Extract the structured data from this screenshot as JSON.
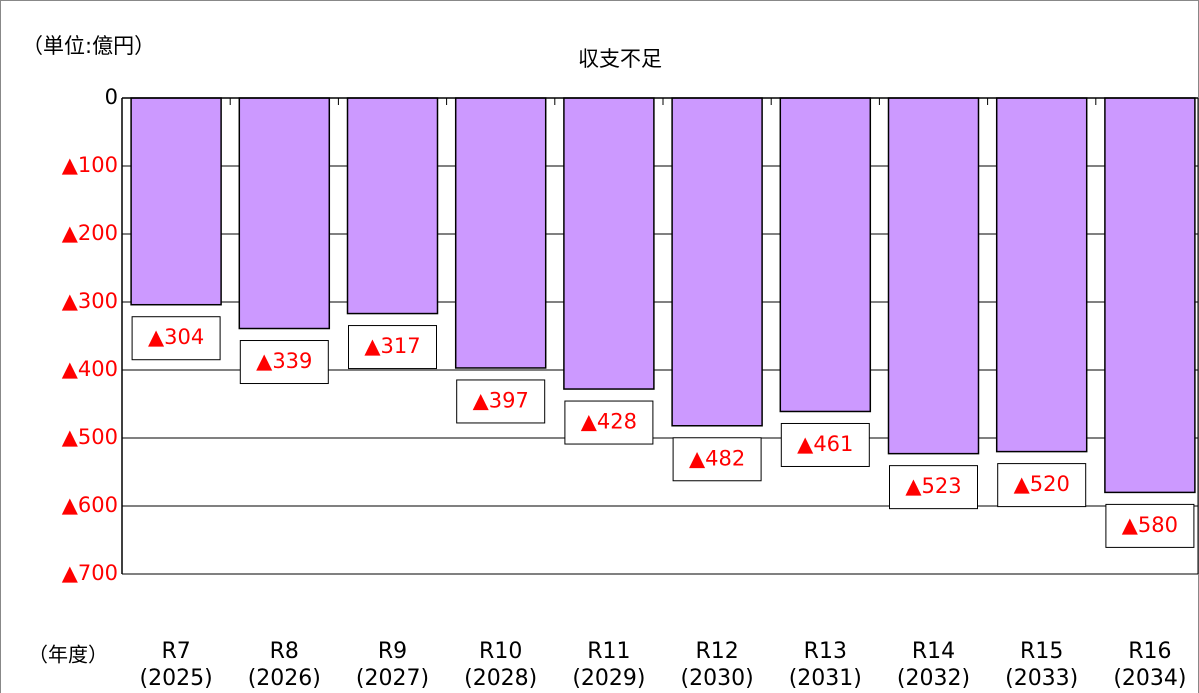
{
  "chart_data": {
    "type": "bar",
    "title": "収支不足",
    "unit_label": "（単位:億円）",
    "x_label": "（年度）",
    "categories": [
      [
        "R7",
        "(2025)"
      ],
      [
        "R8",
        "(2026)"
      ],
      [
        "R9",
        "(2027)"
      ],
      [
        "R10",
        "(2028)"
      ],
      [
        "R11",
        "(2029)"
      ],
      [
        "R12",
        "(2030)"
      ],
      [
        "R13",
        "(2031)"
      ],
      [
        "R14",
        "(2032)"
      ],
      [
        "R15",
        "(2033)"
      ],
      [
        "R16",
        "(2034)"
      ]
    ],
    "values": [
      -304,
      -339,
      -317,
      -397,
      -428,
      -482,
      -461,
      -523,
      -520,
      -580
    ],
    "value_labels": [
      "▲304",
      "▲339",
      "▲317",
      "▲397",
      "▲428",
      "▲482",
      "▲461",
      "▲523",
      "▲520",
      "▲580"
    ],
    "color": "#cc99ff",
    "label_color": "#ff0000",
    "ylim": [
      -700,
      0
    ],
    "yticks": [
      0,
      {
        "value": -100,
        "label": "▲100"
      },
      {
        "value": -200,
        "label": "▲200"
      },
      {
        "value": -300,
        "label": "▲300"
      },
      {
        "value": -400,
        "label": "▲400"
      },
      {
        "value": -500,
        "label": "▲500"
      },
      {
        "value": -600,
        "label": "▲600"
      },
      {
        "value": -700,
        "label": "▲700"
      }
    ],
    "grid": true
  }
}
